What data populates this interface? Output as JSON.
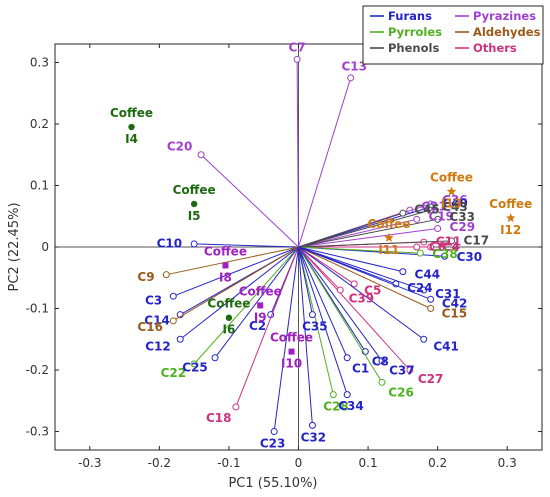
{
  "chart_data": {
    "type": "scatter",
    "xlabel": "PC1 (55.10%)",
    "ylabel": "PC2 (22.45%)",
    "xlim": [
      -0.35,
      0.35
    ],
    "ylim": [
      -0.33,
      0.33
    ],
    "xticks": [
      -0.3,
      -0.2,
      -0.1,
      0,
      0.1,
      0.2,
      0.3
    ],
    "yticks": [
      0.3,
      0.2,
      0.1,
      0,
      -0.1,
      -0.2,
      -0.3
    ],
    "xtick_labels": [
      "-0.3",
      "-0.2",
      "-0.1",
      "0",
      "0.1",
      "0.2",
      "0.3"
    ],
    "ytick_labels": [
      "0.3",
      "0.2",
      "0.1",
      "0",
      "-0.1",
      "-0.2",
      "-0.3"
    ],
    "legend": [
      {
        "name": "Furans",
        "color": "#2424c8"
      },
      {
        "name": "Pyrazines",
        "color": "#a040d0"
      },
      {
        "name": "Pyrroles",
        "color": "#50b020"
      },
      {
        "name": "Aldehydes",
        "color": "#9a5a1a"
      },
      {
        "name": "Phenols",
        "color": "#4a4a4a"
      },
      {
        "name": "Others",
        "color": "#d03080"
      }
    ],
    "colors": {
      "Furans": "#2424c8",
      "Pyrazines": "#a040d0",
      "Pyrroles": "#50b020",
      "Aldehydes": "#9a5a1a",
      "Phenols": "#4a4a4a",
      "Others": "#d03080",
      "sample_green": "#1e6a10",
      "sample_orange": "#d07a10",
      "sample_purple": "#a020c0"
    },
    "loadings": [
      {
        "label": "C1",
        "group": "Furans",
        "x": 0.07,
        "y": -0.18
      },
      {
        "label": "C2",
        "group": "Furans",
        "x": -0.04,
        "y": -0.11
      },
      {
        "label": "C3",
        "group": "Furans",
        "x": -0.18,
        "y": -0.08
      },
      {
        "label": "C4",
        "group": "Others",
        "x": 0.19,
        "y": 0.0
      },
      {
        "label": "C5",
        "group": "Others",
        "x": 0.08,
        "y": -0.06
      },
      {
        "label": "C6",
        "group": "Others",
        "x": 0.17,
        "y": 0.0
      },
      {
        "label": "C7",
        "group": "Pyrazines",
        "x": -0.002,
        "y": 0.305
      },
      {
        "label": "C8",
        "group": "Furans",
        "x": 0.096,
        "y": -0.17
      },
      {
        "label": "C10",
        "group": "Furans",
        "x": -0.15,
        "y": 0.005
      },
      {
        "label": "C9",
        "group": "Aldehydes",
        "x": -0.19,
        "y": -0.045
      },
      {
        "label": "C11",
        "group": "Others",
        "x": 0.18,
        "y": 0.008
      },
      {
        "label": "C12",
        "group": "Furans",
        "x": -0.17,
        "y": -0.15
      },
      {
        "label": "C13",
        "group": "Pyrazines",
        "x": 0.075,
        "y": 0.275
      },
      {
        "label": "C14",
        "group": "Furans",
        "x": -0.17,
        "y": -0.11
      },
      {
        "label": "C15",
        "group": "Aldehydes",
        "x": 0.19,
        "y": -0.1
      },
      {
        "label": "C16",
        "group": "Aldehydes",
        "x": -0.18,
        "y": -0.12
      },
      {
        "label": "C17",
        "group": "Phenols",
        "x": 0.22,
        "y": 0.01
      },
      {
        "label": "C18",
        "group": "Others",
        "x": -0.09,
        "y": -0.26
      },
      {
        "label": "C19",
        "group": "Pyrazines",
        "x": 0.17,
        "y": 0.045
      },
      {
        "label": "C20",
        "group": "Pyrazines",
        "x": -0.14,
        "y": 0.15
      },
      {
        "label": "C21",
        "group": "Pyrazines",
        "x": 0.16,
        "y": 0.06
      },
      {
        "label": "C22",
        "group": "Pyrroles",
        "x": -0.15,
        "y": -0.19
      },
      {
        "label": "C23",
        "group": "Furans",
        "x": -0.035,
        "y": -0.3
      },
      {
        "label": "C24",
        "group": "Furans",
        "x": 0.14,
        "y": -0.06
      },
      {
        "label": "C25",
        "group": "Furans",
        "x": -0.12,
        "y": -0.18
      },
      {
        "label": "C26",
        "group": "Pyrroles",
        "x": 0.12,
        "y": -0.22
      },
      {
        "label": "C27",
        "group": "Others",
        "x": 0.16,
        "y": -0.2
      },
      {
        "label": "C28",
        "group": "Pyrroles",
        "x": 0.05,
        "y": -0.24
      },
      {
        "label": "C29",
        "group": "Pyrazines",
        "x": 0.2,
        "y": 0.03
      },
      {
        "label": "C30",
        "group": "Furans",
        "x": 0.21,
        "y": -0.015
      },
      {
        "label": "C31",
        "group": "Furans",
        "x": 0.18,
        "y": -0.07
      },
      {
        "label": "C32",
        "group": "Furans",
        "x": 0.02,
        "y": -0.29
      },
      {
        "label": "C33",
        "group": "Phenols",
        "x": 0.2,
        "y": 0.045
      },
      {
        "label": "C34",
        "group": "Furans",
        "x": 0.07,
        "y": -0.24
      },
      {
        "label": "C35",
        "group": "Furans",
        "x": 0.02,
        "y": -0.11
      },
      {
        "label": "C36",
        "group": "Pyrazines",
        "x": 0.19,
        "y": 0.07
      },
      {
        "label": "C37",
        "group": "Furans",
        "x": 0.12,
        "y": -0.185
      },
      {
        "label": "C38",
        "group": "Pyrroles",
        "x": 0.175,
        "y": -0.01
      },
      {
        "label": "C39",
        "group": "Others",
        "x": 0.06,
        "y": -0.07
      },
      {
        "label": "C40",
        "group": "Furans",
        "x": 0.19,
        "y": 0.065
      },
      {
        "label": "C41",
        "group": "Furans",
        "x": 0.18,
        "y": -0.15
      },
      {
        "label": "C42",
        "group": "Furans",
        "x": 0.19,
        "y": -0.085
      },
      {
        "label": "C43",
        "group": "Phenols",
        "x": 0.19,
        "y": 0.06
      },
      {
        "label": "C44",
        "group": "Furans",
        "x": 0.15,
        "y": -0.04
      },
      {
        "label": "C45",
        "group": "Phenols",
        "x": 0.15,
        "y": 0.055
      }
    ],
    "samples": [
      {
        "top": "Coffee",
        "bottom": "I4",
        "x": -0.24,
        "y": 0.195,
        "marker": "circle",
        "color": "sample_green"
      },
      {
        "top": "Coffee",
        "bottom": "I5",
        "x": -0.15,
        "y": 0.07,
        "marker": "circle",
        "color": "sample_green"
      },
      {
        "top": "Coffee",
        "bottom": "I6",
        "x": -0.1,
        "y": -0.115,
        "marker": "circle",
        "color": "sample_green"
      },
      {
        "top": "Coffee",
        "bottom": "I8",
        "x": -0.105,
        "y": -0.03,
        "marker": "square",
        "color": "sample_purple"
      },
      {
        "top": "Coffee",
        "bottom": "I9",
        "x": -0.055,
        "y": -0.095,
        "marker": "square",
        "color": "sample_purple"
      },
      {
        "top": "Coffee",
        "bottom": "I10",
        "x": -0.01,
        "y": -0.17,
        "marker": "square",
        "color": "sample_purple"
      },
      {
        "top": "Coffee",
        "bottom": "I11",
        "x": 0.13,
        "y": 0.015,
        "marker": "star",
        "color": "sample_orange"
      },
      {
        "top": "Coffee",
        "bottom": "I12",
        "x": 0.305,
        "y": 0.047,
        "marker": "star",
        "color": "sample_orange"
      },
      {
        "top": "Coffee",
        "bottom": "I13",
        "x": 0.22,
        "y": 0.09,
        "marker": "star",
        "color": "sample_orange"
      }
    ]
  }
}
